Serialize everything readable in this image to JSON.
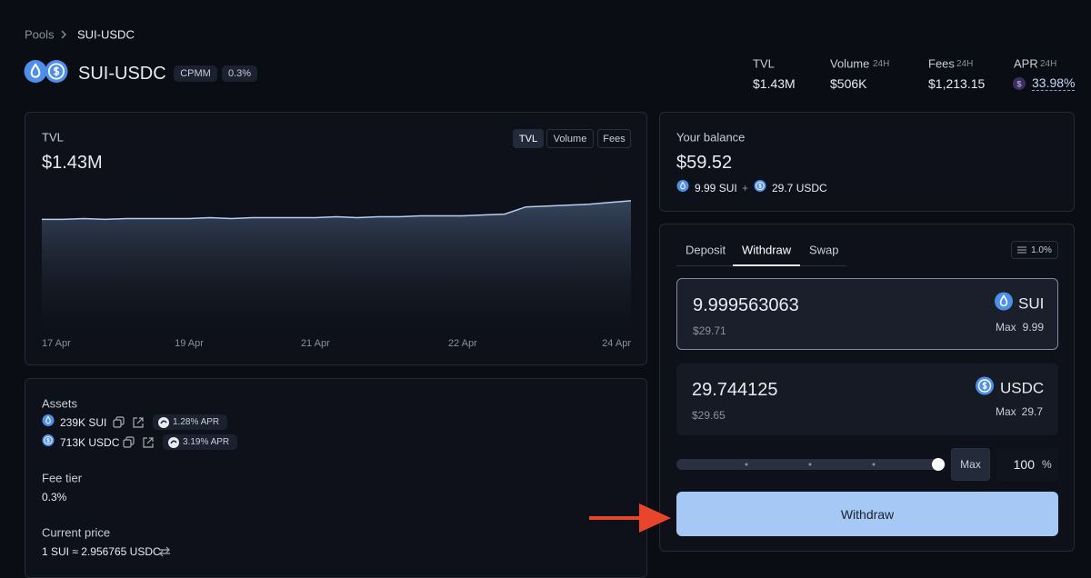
{
  "breadcrumb": {
    "parent": "Pools",
    "current": "SUI-USDC"
  },
  "header": {
    "title": "SUI-USDC",
    "tags": [
      "CPMM",
      "0.3%"
    ],
    "stats": [
      {
        "label": "TVL",
        "value": "$1.43M"
      },
      {
        "label": "Volume",
        "period": "24H",
        "value": "$506K"
      },
      {
        "label": "Fees",
        "period": "24H",
        "value": "$1,213.15"
      },
      {
        "label": "APR",
        "period": "24H",
        "value": "33.98%"
      }
    ]
  },
  "tvl_panel": {
    "label": "TVL",
    "value": "$1.43M",
    "tabs": [
      "TVL",
      "Volume",
      "Fees"
    ]
  },
  "chart_data": {
    "type": "area",
    "categories": [
      "17 Apr",
      null,
      null,
      null,
      null,
      null,
      null,
      "19 Apr",
      null,
      null,
      null,
      null,
      null,
      "21 Apr",
      null,
      null,
      null,
      null,
      null,
      null,
      "22 Apr",
      null,
      null,
      null,
      null,
      null,
      null,
      null,
      "24 Apr"
    ],
    "values": [
      1.22,
      1.22,
      1.23,
      1.22,
      1.23,
      1.23,
      1.23,
      1.23,
      1.24,
      1.23,
      1.24,
      1.24,
      1.24,
      1.24,
      1.25,
      1.24,
      1.25,
      1.25,
      1.26,
      1.26,
      1.26,
      1.27,
      1.28,
      1.36,
      1.37,
      1.38,
      1.39,
      1.41,
      1.43
    ],
    "ylim": [
      0,
      1.5
    ],
    "color": "#b4cdf0"
  },
  "assets_panel": {
    "title": "Assets",
    "assets": [
      {
        "amount": "239K SUI",
        "apr": "1.28% APR"
      },
      {
        "amount": "713K USDC",
        "apr": "3.19% APR"
      }
    ],
    "fee_tier_label": "Fee tier",
    "fee_tier": "0.3%",
    "price_label": "Current price",
    "price": "1 SUI ≈ 2.956765 USDC"
  },
  "balance": {
    "label": "Your balance",
    "value": "$59.52",
    "sui": "9.99 SUI",
    "plus": "+",
    "usdc": "29.7 USDC"
  },
  "form": {
    "tabs": [
      "Deposit",
      "Withdraw",
      "Swap"
    ],
    "slippage": "1.0%",
    "inputs": [
      {
        "amount": "9.999563063",
        "usd": "$29.71",
        "token": "SUI",
        "max_label": "Max",
        "max": "9.99"
      },
      {
        "amount": "29.744125",
        "usd": "$29.65",
        "token": "USDC",
        "max_label": "Max",
        "max": "29.7"
      }
    ],
    "max_button": "Max",
    "percent": "100",
    "percent_unit": "%",
    "submit": "Withdraw"
  }
}
